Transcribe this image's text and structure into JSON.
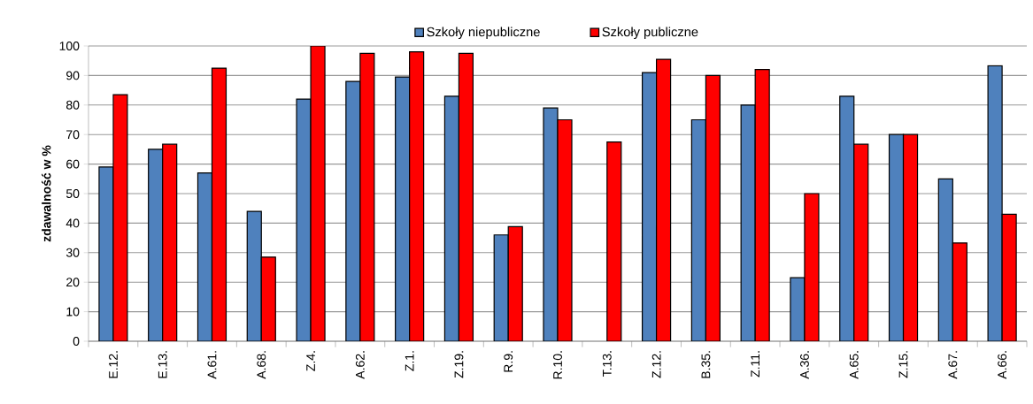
{
  "chart_data": {
    "type": "bar",
    "ylabel": "zdawalność w %",
    "categories": [
      "E.12.",
      "E.13.",
      "A.61.",
      "A.68.",
      "Z.4.",
      "A.62.",
      "Z.1.",
      "Z.19.",
      "R.9.",
      "R.10.",
      "T.13.",
      "Z.12.",
      "B.35.",
      "Z.11.",
      "A.36.",
      "A.65.",
      "Z.15.",
      "A.67.",
      "A.66."
    ],
    "series": [
      {
        "name": "Szkoły niepubliczne",
        "color": "#4f81bd",
        "values": [
          59,
          65,
          57,
          44,
          82,
          88,
          89.5,
          83,
          36,
          79,
          null,
          91,
          75,
          80,
          21.5,
          83,
          70,
          55,
          93.3
        ]
      },
      {
        "name": "Szkoły publiczne",
        "color": "#ff0000",
        "values": [
          83.5,
          66.7,
          92.5,
          28.5,
          100,
          97.5,
          98,
          97.5,
          38.8,
          75,
          67.5,
          95.5,
          90,
          92,
          50,
          66.7,
          70,
          33.3,
          43
        ]
      }
    ],
    "ylim": [
      0,
      100
    ],
    "yticks": [
      0,
      10,
      20,
      30,
      40,
      50,
      60,
      70,
      80,
      90,
      100
    ],
    "grid": "y",
    "legend": "top"
  }
}
